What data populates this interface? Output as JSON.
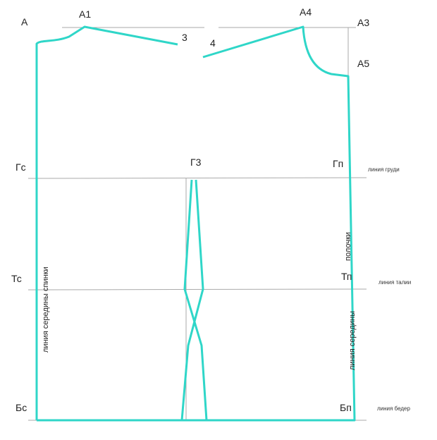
{
  "points": [
    "А",
    "А1",
    "3",
    "4",
    "А4",
    "А3",
    "А5",
    "Гс",
    "Г3",
    "Гп",
    "Тс",
    "Тп",
    "Бс",
    "Бп"
  ],
  "lines": [
    "линия груди",
    "линия талии",
    "линия бедер"
  ],
  "back_center": "линия середины спинки",
  "front_center": [
    "полочки",
    "линия середины"
  ]
}
